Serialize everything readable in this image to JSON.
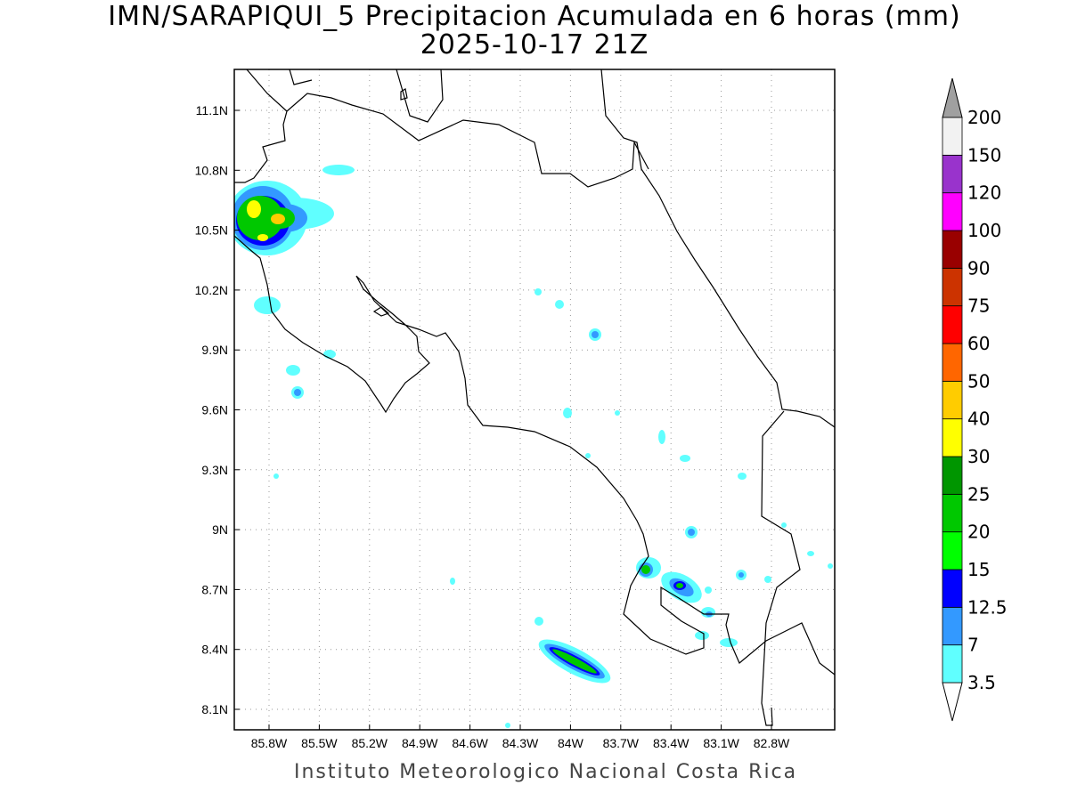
{
  "title": "IMN/SARAPIQUI_5 Precipitacion Acumulada en 6 horas (mm)",
  "subtitle": "2025-10-17 21Z",
  "credit": "Instituto Meteorologico Nacional Costa Rica",
  "lon_ticks": [
    "85.8W",
    "85.5W",
    "85.2W",
    "84.9W",
    "84.6W",
    "84.3W",
    "84W",
    "83.7W",
    "83.4W",
    "83.1W",
    "82.8W"
  ],
  "lat_ticks": [
    "11.1N",
    "10.8N",
    "10.5N",
    "10.2N",
    "9.9N",
    "9.6N",
    "9.3N",
    "9N",
    "8.7N",
    "8.4N",
    "8.1N"
  ],
  "colorbar": {
    "labels": [
      "3.5",
      "7",
      "12.5",
      "15",
      "20",
      "25",
      "30",
      "40",
      "50",
      "60",
      "75",
      "90",
      "100",
      "120",
      "150",
      "200"
    ],
    "colors": [
      "#60ffff",
      "#3399ff",
      "#0000ff",
      "#00ff00",
      "#00c800",
      "#009600",
      "#ffff00",
      "#ffcc00",
      "#ff6600",
      "#ff0000",
      "#cc3300",
      "#990000",
      "#ff00ff",
      "#9933cc",
      "#f2f2f2"
    ],
    "over_color": "#a0a0a0",
    "under_color": "#ffffff"
  }
}
